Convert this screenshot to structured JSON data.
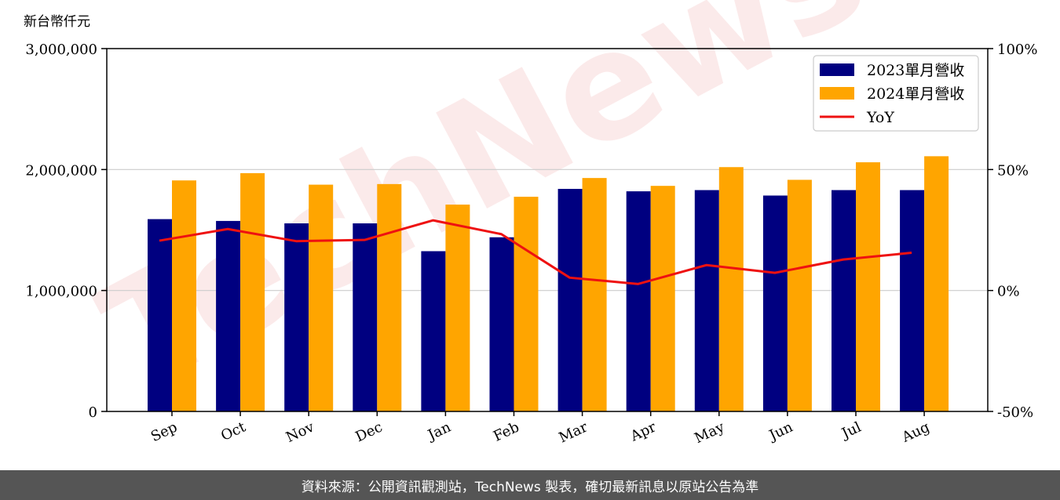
{
  "chart_data": {
    "type": "bar",
    "unit_label": "新台幣仟元",
    "categories": [
      "Sep",
      "Oct",
      "Nov",
      "Dec",
      "Jan",
      "Feb",
      "Mar",
      "Apr",
      "May",
      "Jun",
      "Jul",
      "Aug"
    ],
    "series": [
      {
        "name": "2023單月營收",
        "type": "bar",
        "color": "#000080",
        "values": [
          1590000,
          1575000,
          1555000,
          1555000,
          1325000,
          1440000,
          1840000,
          1820000,
          1830000,
          1785000,
          1830000,
          1830000
        ]
      },
      {
        "name": "2024單月營收",
        "type": "bar",
        "color": "#FFA500",
        "values": [
          1910000,
          1970000,
          1875000,
          1880000,
          1710000,
          1775000,
          1930000,
          1865000,
          2020000,
          1915000,
          2060000,
          2110000
        ]
      },
      {
        "name": "YoY",
        "type": "line",
        "axis": "right",
        "color": "#EE1111",
        "values": [
          20.6,
          25.4,
          20.4,
          20.9,
          29.0,
          23.3,
          5.3,
          2.7,
          10.5,
          7.3,
          12.8,
          15.6
        ]
      }
    ],
    "ylim": [
      0,
      3000000
    ],
    "y_ticks": [
      "0",
      "1,000,000",
      "2,000,000",
      "3,000,000"
    ],
    "y2lim": [
      -50,
      100
    ],
    "y2_ticks": [
      "-50%",
      "0%",
      "50%",
      "100%"
    ],
    "grid": true,
    "legend": "top-right"
  },
  "watermark": "TechNews",
  "footer_text": "資料來源：公開資訊觀測站，TechNews 製表，確切最新訊息以原站公告為準"
}
